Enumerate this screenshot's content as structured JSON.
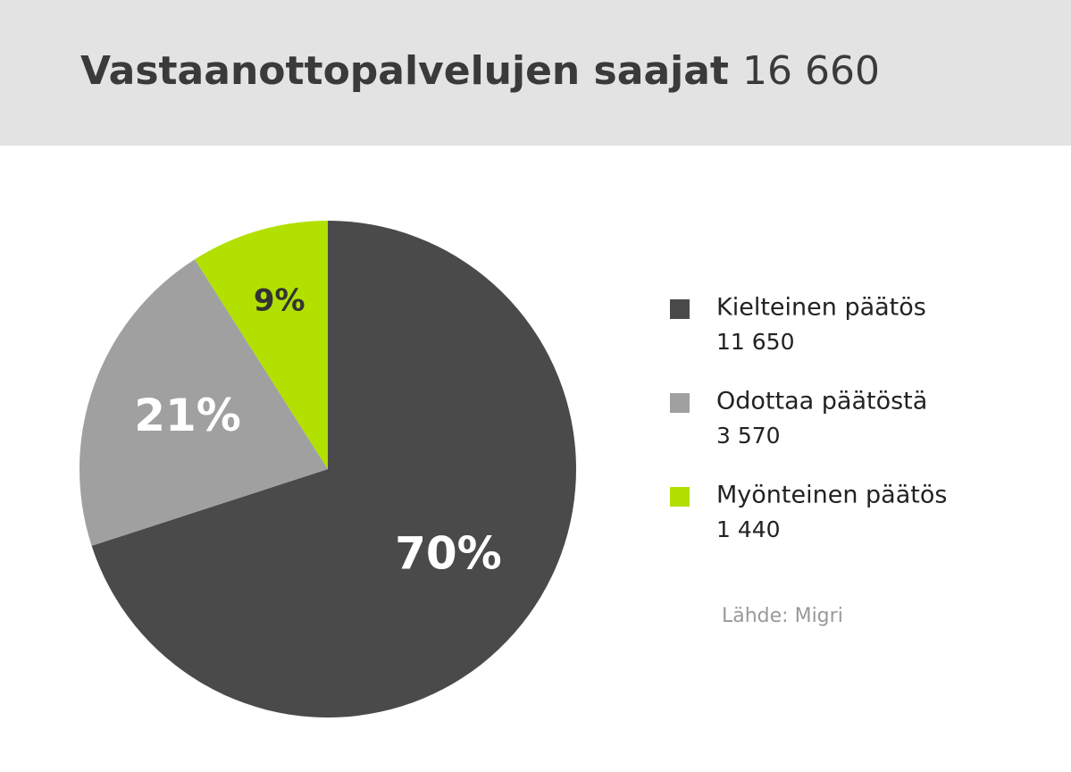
{
  "chart_data": {
    "type": "pie",
    "title": "Vastaanottopalvelujen saajat",
    "total": 16660,
    "total_label": "16 660",
    "categories": [
      "Kielteinen päätös",
      "Odottaa päätöstä",
      "Myönteinen päätös"
    ],
    "values": [
      70,
      21,
      9
    ],
    "value_labels": [
      "70%",
      "21%",
      "9%"
    ],
    "counts": [
      11650,
      3570,
      1440
    ],
    "count_labels": [
      "11 650",
      "3 570",
      "1 440"
    ],
    "colors": [
      "#4a4a4a",
      "#a0a0a0",
      "#b2e000"
    ],
    "label_colors": [
      "#ffffff",
      "#ffffff",
      "#333333"
    ],
    "legend": "right",
    "source": "Lähde: Migri"
  }
}
